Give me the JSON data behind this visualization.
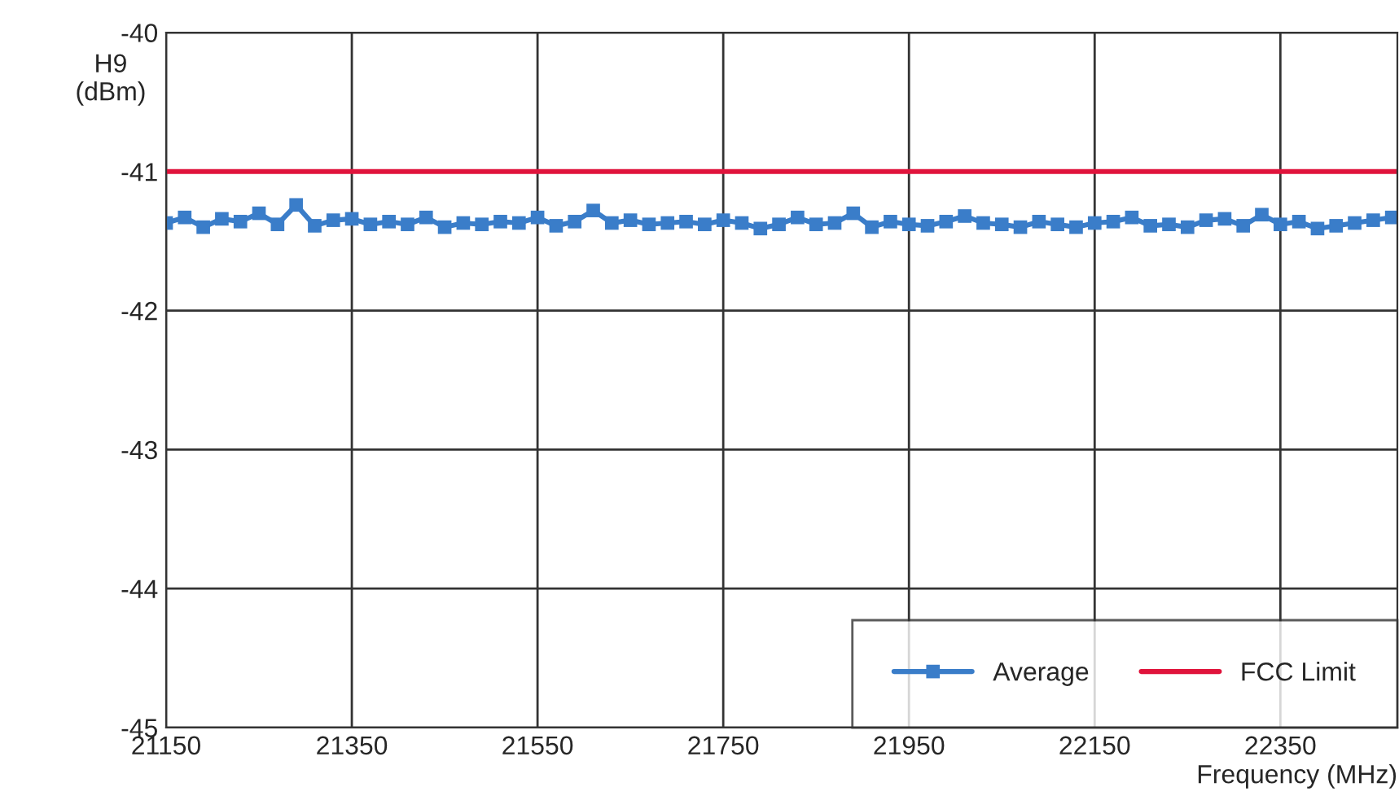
{
  "chart_data": {
    "type": "line",
    "xlabel": "Frequency (MHz)",
    "ylabel": "H9\n(dBm)",
    "x": [
      21150,
      21170,
      21190,
      21210,
      21230,
      21250,
      21270,
      21290,
      21310,
      21330,
      21350,
      21370,
      21390,
      21410,
      21430,
      21450,
      21470,
      21490,
      21510,
      21530,
      21550,
      21570,
      21590,
      21610,
      21630,
      21650,
      21670,
      21690,
      21710,
      21730,
      21750,
      21770,
      21790,
      21810,
      21830,
      21850,
      21870,
      21890,
      21910,
      21930,
      21950,
      21970,
      21990,
      22010,
      22030,
      22050,
      22070,
      22090,
      22110,
      22130,
      22150,
      22170,
      22190,
      22210,
      22230,
      22250,
      22270,
      22290,
      22310,
      22330,
      22350,
      22370,
      22390,
      22410,
      22430,
      22450,
      22470
    ],
    "series": [
      {
        "name": "Average",
        "color": "#3a7dc9",
        "marker": "square",
        "values": [
          -41.37,
          -41.33,
          -41.4,
          -41.34,
          -41.36,
          -41.3,
          -41.38,
          -41.24,
          -41.39,
          -41.35,
          -41.34,
          -41.38,
          -41.36,
          -41.38,
          -41.33,
          -41.4,
          -41.37,
          -41.38,
          -41.36,
          -41.37,
          -41.33,
          -41.39,
          -41.36,
          -41.28,
          -41.37,
          -41.35,
          -41.38,
          -41.37,
          -41.36,
          -41.38,
          -41.35,
          -41.37,
          -41.41,
          -41.38,
          -41.33,
          -41.38,
          -41.37,
          -41.3,
          -41.4,
          -41.36,
          -41.38,
          -41.39,
          -41.36,
          -41.32,
          -41.37,
          -41.38,
          -41.4,
          -41.36,
          -41.38,
          -41.4,
          -41.37,
          -41.36,
          -41.33,
          -41.39,
          -41.38,
          -41.4,
          -41.35,
          -41.34,
          -41.39,
          -41.31,
          -41.38,
          -41.36,
          -41.41,
          -41.39,
          -41.37,
          -41.35,
          -41.33
        ]
      },
      {
        "name": "FCC Limit",
        "color": "#e0143c",
        "marker": "none",
        "x": [
          21150,
          22476
        ],
        "values": [
          -41,
          -41
        ]
      }
    ],
    "xlim": [
      21150,
      22476
    ],
    "xticks": [
      21150,
      21350,
      21550,
      21750,
      21950,
      22150,
      22350
    ],
    "ylim": [
      -45,
      -40
    ],
    "yticks": [
      -45,
      -44,
      -43,
      -42,
      -41,
      -40
    ],
    "grid": true,
    "legend": "bottom right",
    "line_style": "solid"
  }
}
